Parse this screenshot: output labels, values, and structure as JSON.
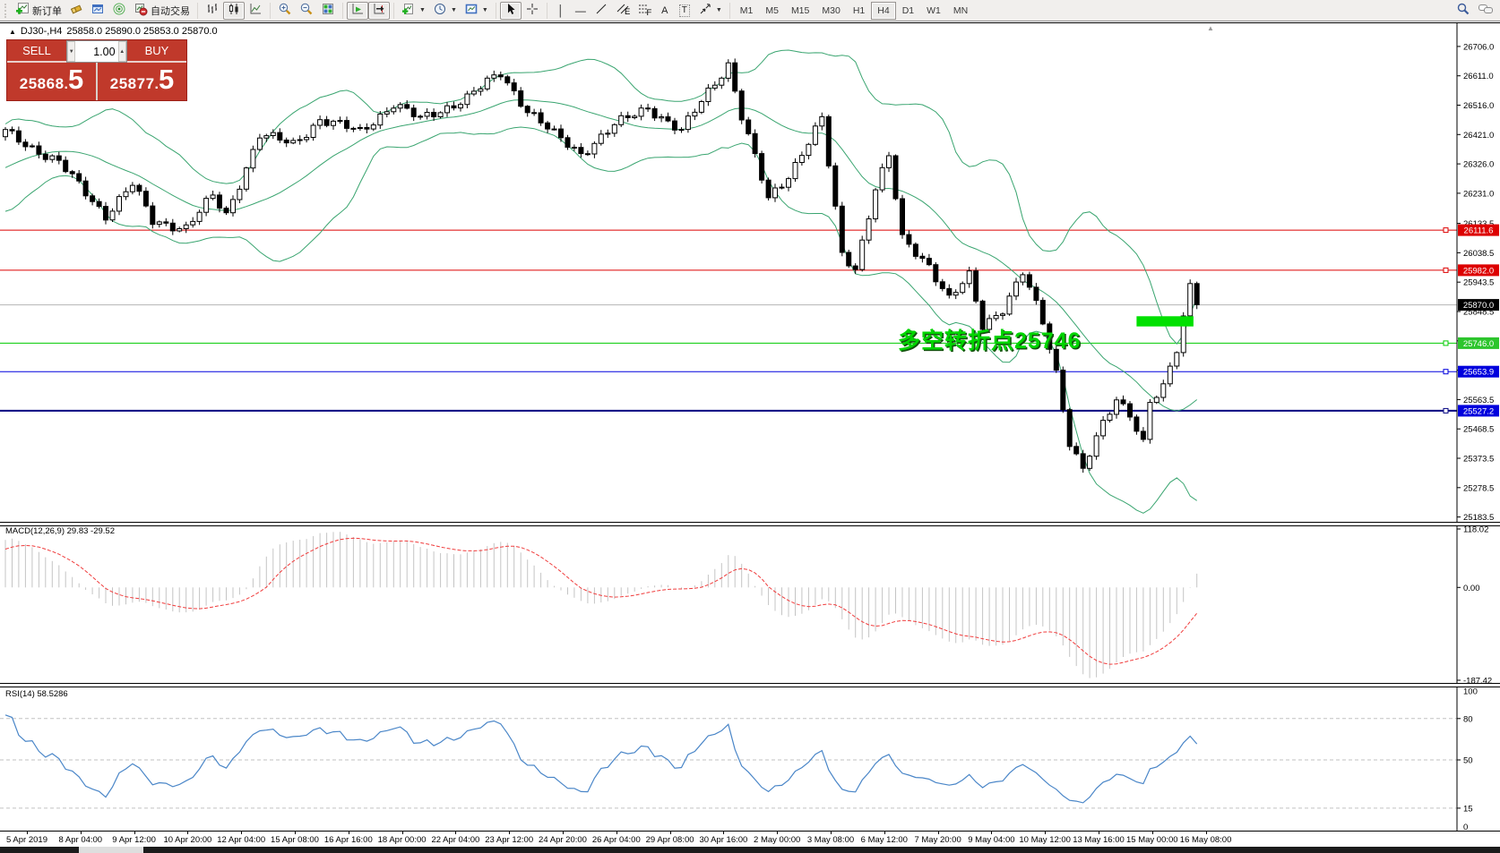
{
  "toolbar": {
    "new_order_label": "新订单",
    "auto_trading_label": "自动交易",
    "timeframes": [
      "M1",
      "M5",
      "M15",
      "M30",
      "H1",
      "H4",
      "D1",
      "W1",
      "MN"
    ],
    "active_timeframe": "H4",
    "letter_a": "A",
    "letter_t": "T"
  },
  "symbol_line": {
    "collapse_arrow": "▲",
    "symbol": "DJ30-,H4",
    "ohlc": "25858.0 25890.0 25853.0 25870.0"
  },
  "trade_panel": {
    "sell_label": "SELL",
    "buy_label": "BUY",
    "volume": "1.00",
    "step_down": "▼",
    "step_up": "▲",
    "sell_price_main": "25868",
    "sell_price_dot": ".",
    "sell_price_big": "5",
    "buy_price_main": "25877",
    "buy_price_dot": ".",
    "buy_price_big": "5"
  },
  "annotation": {
    "text": "多空转折点25746"
  },
  "scroll_marker": "▲",
  "chart": {
    "price_ticks": [
      "26706.0",
      "26611.0",
      "26516.0",
      "26421.0",
      "26326.0",
      "26231.0",
      "26133.5",
      "26038.5",
      "25943.5",
      "25848.5",
      "25753.5",
      "25658.5",
      "25563.5",
      "25468.5",
      "25373.5",
      "25278.5",
      "25183.5"
    ],
    "hlines": [
      {
        "price": 26111.6,
        "label": "26111.6",
        "color": "#dd0000",
        "tag": "#dd0000",
        "lw": 1,
        "endpoint": true
      },
      {
        "price": 25982.0,
        "label": "25982.0",
        "color": "#dd0000",
        "tag": "#dd0000",
        "lw": 1,
        "endpoint": true
      },
      {
        "price": 25870.0,
        "label": "25870.0",
        "color": "#b4b4b4",
        "tag": "#000000",
        "lw": 1,
        "endpoint": false
      },
      {
        "price": 25746.0,
        "label": "25746.0",
        "color": "#00cc00",
        "tag": "#2dc52d",
        "lw": 1,
        "endpoint": true
      },
      {
        "price": 25653.9,
        "label": "25653.9",
        "color": "#0000dd",
        "lw": 1,
        "tag": "#0000dd",
        "endpoint": true
      },
      {
        "price": 25527.2,
        "label": "25527.2",
        "color": "#000080",
        "tag": "#0000dd",
        "lw": 2,
        "endpoint": true
      }
    ],
    "highlight_rect": {
      "bar_start": 169,
      "bar_end": 177.5,
      "price_top": 25833,
      "price_bottom": 25800,
      "color": "#00e000"
    },
    "colors": {
      "candle_up": "#ffffff",
      "candle_down": "#000000",
      "candle_line": "#000000",
      "bollinger": "#3aa570",
      "macd_bar": "#c4c4c4",
      "macd_signal": "#f03c3c",
      "rsi_line": "#4a86c8"
    }
  },
  "macd_pane": {
    "label": "MACD(12,26,9) 29.83 -29.52",
    "axis_max": "118.02",
    "axis_zero": "0.00",
    "axis_min": "-187.42"
  },
  "rsi_pane": {
    "label": "RSI(14) 58.5286",
    "axis_top": "100",
    "axis_bottom": "0",
    "levels": [
      80,
      50,
      15
    ]
  },
  "time_axis": {
    "labels": [
      "5 Apr 2019",
      "8 Apr 04:00",
      "9 Apr 12:00",
      "10 Apr 20:00",
      "12 Apr 04:00",
      "15 Apr 08:00",
      "16 Apr 16:00",
      "18 Apr 00:00",
      "22 Apr 04:00",
      "23 Apr 12:00",
      "24 Apr 20:00",
      "26 Apr 04:00",
      "29 Apr 08:00",
      "30 Apr 16:00",
      "2 May 00:00",
      "3 May 08:00",
      "6 May 12:00",
      "7 May 20:00",
      "9 May 04:00",
      "10 May 12:00",
      "13 May 16:00",
      "15 May 00:00",
      "16 May 08:00"
    ]
  },
  "chart_data": {
    "type": "candlestick",
    "symbol": "DJ30-",
    "timeframe": "H4",
    "last_bar_ohlc": {
      "open": 25858.0,
      "high": 25890.0,
      "low": 25853.0,
      "close": 25870.0
    },
    "bid": 25868.5,
    "ask": 25877.5,
    "bars_visible": 179,
    "prehistory_bars": 45,
    "price_axis_range": [
      25168,
      26781
    ],
    "time_range": [
      "5 Apr 2019",
      "16 May 08:00"
    ],
    "close_keyframes": [
      [
        -45,
        26060
      ],
      [
        -30,
        26300
      ],
      [
        -18,
        26210
      ],
      [
        -8,
        26330
      ],
      [
        0,
        26430
      ],
      [
        4,
        26380
      ],
      [
        8,
        26330
      ],
      [
        15,
        26160
      ],
      [
        19,
        26260
      ],
      [
        22,
        26140
      ],
      [
        27,
        26120
      ],
      [
        31,
        26220
      ],
      [
        33,
        26160
      ],
      [
        38,
        26420
      ],
      [
        43,
        26390
      ],
      [
        47,
        26470
      ],
      [
        53,
        26430
      ],
      [
        58,
        26520
      ],
      [
        62,
        26470
      ],
      [
        69,
        26540
      ],
      [
        74,
        26620
      ],
      [
        78,
        26500
      ],
      [
        82,
        26420
      ],
      [
        86,
        26360
      ],
      [
        91,
        26450
      ],
      [
        96,
        26510
      ],
      [
        101,
        26430
      ],
      [
        105,
        26560
      ],
      [
        108,
        26650
      ],
      [
        110,
        26480
      ],
      [
        114,
        26210
      ],
      [
        117,
        26290
      ],
      [
        120,
        26400
      ],
      [
        122,
        26470
      ],
      [
        125,
        26030
      ],
      [
        127,
        25990
      ],
      [
        130,
        26250
      ],
      [
        132,
        26350
      ],
      [
        134,
        26080
      ],
      [
        138,
        26000
      ],
      [
        141,
        25890
      ],
      [
        144,
        25960
      ],
      [
        146,
        25800
      ],
      [
        149,
        25860
      ],
      [
        152,
        25975
      ],
      [
        155,
        25810
      ],
      [
        157,
        25650
      ],
      [
        159,
        25430
      ],
      [
        161,
        25340
      ],
      [
        162,
        25390
      ],
      [
        164,
        25480
      ],
      [
        166,
        25560
      ],
      [
        168,
        25520
      ],
      [
        170,
        25430
      ],
      [
        171,
        25560
      ],
      [
        173,
        25600
      ],
      [
        175,
        25720
      ],
      [
        177,
        25930
      ],
      [
        178,
        25870
      ]
    ],
    "indicators": [
      {
        "name": "Bollinger Bands",
        "period": 20,
        "deviation": 2
      },
      {
        "name": "MACD",
        "fast": 12,
        "slow": 26,
        "signal_period": 9,
        "current_macd": 29.83,
        "current_signal": -29.52,
        "axis": [
          118.02,
          0.0,
          -187.42
        ]
      },
      {
        "name": "RSI",
        "period": 14,
        "current": 58.5286,
        "levels": [
          15,
          50,
          80
        ],
        "axis": [
          0,
          100
        ]
      }
    ],
    "horizontal_levels": [
      26111.6,
      25982.0,
      25746.0,
      25653.9,
      25527.2
    ],
    "current_price_line": 25870.0
  }
}
